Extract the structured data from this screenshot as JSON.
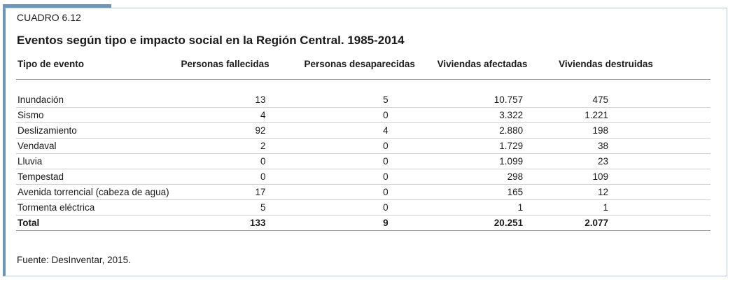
{
  "table_label": "CUADRO 6.12",
  "title": "Eventos según tipo e impacto social en la Región Central. 1985-2014",
  "columns": [
    "Tipo de evento",
    "Personas fallecidas",
    "Personas desaparecidas",
    "Viviendas afectadas",
    "Viviendas destruidas"
  ],
  "rows": [
    [
      "Inundación",
      "13",
      "5",
      "10.757",
      "475"
    ],
    [
      "Sismo",
      "4",
      "0",
      "3.322",
      "1.221"
    ],
    [
      "Deslizamiento",
      "92",
      "4",
      "2.880",
      "198"
    ],
    [
      "Vendaval",
      "2",
      "0",
      "1.729",
      "38"
    ],
    [
      "Lluvia",
      "0",
      "0",
      "1.099",
      "23"
    ],
    [
      "Tempestad",
      "0",
      "0",
      "298",
      "109"
    ],
    [
      "Avenida torrencial (cabeza de agua)",
      "17",
      "0",
      "165",
      "12"
    ],
    [
      "Tormenta eléctrica",
      "5",
      "0",
      "1",
      "1"
    ]
  ],
  "total": [
    "Total",
    "133",
    "9",
    "20.251",
    "2.077"
  ],
  "source": "Fuente: DesInventar, 2015.",
  "colors": {
    "accent": "#6b96b8",
    "border": "#b8cde0"
  }
}
